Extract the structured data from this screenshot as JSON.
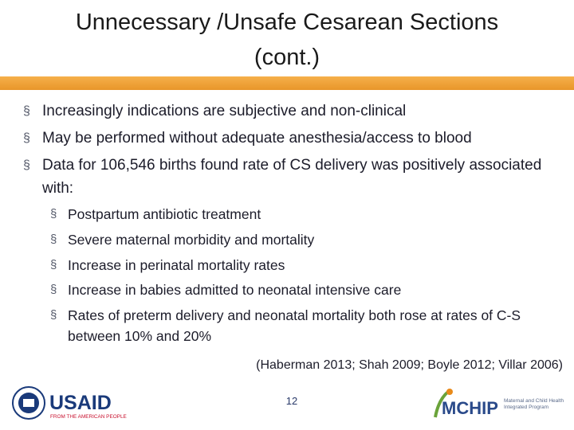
{
  "header": {
    "title_lines": [
      "Unnecessary /Unsafe Cesarean Sections",
      "(cont.)"
    ]
  },
  "bullets": [
    {
      "text": "Increasingly indications are subjective and non-clinical"
    },
    {
      "text": "May be performed without adequate anesthesia/access to blood"
    },
    {
      "text": "Data for 106,546 births found rate of CS delivery was positively associated with:",
      "children": [
        "Postpartum antibiotic treatment",
        "Severe maternal morbidity and mortality",
        "Increase in perinatal mortality rates",
        "Increase in babies admitted to neonatal intensive care",
        "Rates of preterm delivery and neonatal mortality both rose at rates of C-S between 10% and 20%"
      ]
    }
  ],
  "citation": "(Haberman 2013; Shah 2009; Boyle 2012; Villar 2006)",
  "page_number": "12",
  "logos": {
    "usaid": "USAID",
    "usaid_tagline": "FROM THE AMERICAN PEOPLE",
    "mchip": "MCHIP",
    "mchip_tagline": "Maternal and Child Health Integrated Program"
  }
}
